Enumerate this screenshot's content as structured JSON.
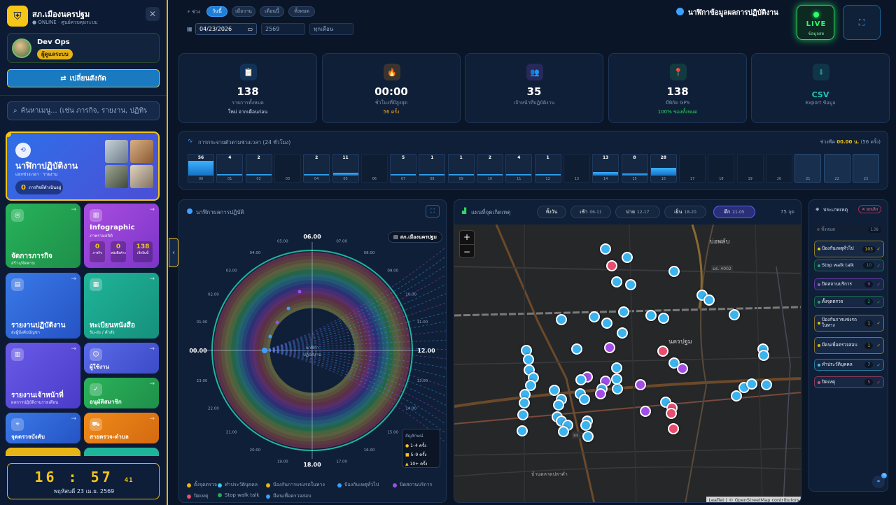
{
  "sidebar": {
    "brand_name": "สภ.เมืองนครปฐม",
    "brand_status": "● ONLINE · ศูนย์ควบคุมระบบ",
    "close": "✕",
    "user_name": "Dev Ops",
    "user_role": "ผู้ดูแลระบบ",
    "switch_label": "เปลี่ยนสังกัด",
    "search_placeholder": "ค้นหาเมนู... (เช่น ภารกิจ, รายงาน, ปฏิทิน)",
    "hero": {
      "title": "นาฬิกาปฏิบัติงาน",
      "subtitle": "แยกช่วงเวลา · รายงาน",
      "count": "0",
      "count_label": "ภารกิจที่ดำเนินอยู่"
    },
    "tiles": [
      {
        "title": "จัดการภารกิจ",
        "sub": "สร้าง/จัดตาม"
      },
      {
        "title": "Infographic",
        "sub": "ภาพรวมสถิติ"
      },
      {
        "title": "รายงานปฏิบัติงาน",
        "sub": "ส่งผู้บังคับบัญชา"
      },
      {
        "title": "ทะเบียนหนังสือ",
        "sub": "รับ-ส่ง / คำสั่ง"
      },
      {
        "title": "รายงานเจ้าหน้าที่",
        "sub": "ผลการปฏิบัติงานรายเดือน"
      },
      {
        "title": "ผู้ใช้งาน",
        "sub": ""
      },
      {
        "title": "อนุมัติสมาชิก",
        "sub": ""
      },
      {
        "title": "จุดตรวจบังคับ",
        "sub": ""
      },
      {
        "title": "สายตรวจ-ตำบล",
        "sub": ""
      }
    ],
    "info_stats": [
      {
        "v": "0",
        "l": "ภารกิจ"
      },
      {
        "v": "0",
        "l": "หนังสือค้าง"
      },
      {
        "v": "138",
        "l": "เช็กอินนี้"
      }
    ],
    "clock_time": "16 : 57",
    "clock_sec": "41",
    "clock_date": "พฤหัสบดี 23 เม.ย. 2569"
  },
  "topbar": {
    "range_label": "⚡ ช่วง",
    "chips": [
      "วันนี้",
      "เมื่อวาน",
      "เดือนนี้",
      "ทั้งหมด"
    ],
    "date_value": "04/23/2026",
    "year": "2569",
    "month": "ทุกเดือน",
    "page_title": "นาฬิกาข้อมูลผลการปฏิบัติงาน",
    "live_label": "LIVE",
    "live_sub": "ข้อมูลสด",
    "fullscreen": "⛶"
  },
  "stats": [
    {
      "value": "138",
      "label": "รายการทั้งหมด",
      "extra": "ใหม่ จากเดือนก่อน",
      "extra_color": "#cfe0f5",
      "icon": "📋",
      "color": "#1e7fd8"
    },
    {
      "value": "00:00",
      "label": "ชั่วโมงที่มีสูงสุด",
      "extra": "56 ครั้ง",
      "extra_color": "#f5a623",
      "icon": "🔥",
      "color": "#e58a13"
    },
    {
      "value": "35",
      "label": "เจ้าหน้าที่ปฏิบัติงาน",
      "extra": "",
      "extra_color": "#cfe0f5",
      "icon": "👥",
      "color": "#8d4fe0"
    },
    {
      "value": "138",
      "label": "มีพิกัด GPS",
      "extra": "100% ของทั้งหมด",
      "extra_color": "#2bd95a",
      "icon": "📍",
      "color": "#23a85a"
    },
    {
      "value": "CSV",
      "label": "Export ข้อมูล",
      "extra": "",
      "extra_color": "#cfe0f5",
      "icon": "⬇",
      "color": "#1a8f8a"
    }
  ],
  "timeline": {
    "title": "การกระจายตัวตามช่วงเวลา (24 ชั่วโมง)",
    "peak_prefix": "ช่วงพีค",
    "peak_value": "00.00 น.",
    "peak_suffix": "(56 ครั้ง)",
    "hours": [
      "00",
      "01",
      "02",
      "03",
      "04",
      "05",
      "06",
      "07",
      "08",
      "09",
      "10",
      "11",
      "12",
      "13",
      "14",
      "15",
      "16",
      "17",
      "18",
      "19",
      "20",
      "21",
      "22",
      "23"
    ],
    "counts": [
      56,
      4,
      2,
      0,
      2,
      11,
      0,
      5,
      1,
      1,
      2,
      4,
      1,
      0,
      13,
      8,
      28,
      0,
      0,
      0,
      0,
      0,
      0,
      0
    ]
  },
  "clock_panel": {
    "title": "นาฬิกาผลการปฏิบัติ",
    "unit_badge": "สภ.เมืองนครปฐม",
    "center_label": "นาฬิกา\nปฏิบัติงาน",
    "hour_labels": [
      "00.00",
      "01.00",
      "02.00",
      "03.00",
      "04.00",
      "05.00",
      "06.00",
      "07.00",
      "08.00",
      "09.00",
      "10.00",
      "11.00",
      "12.00",
      "13.00",
      "14.00",
      "15.00",
      "16.00",
      "17.00",
      "18.00",
      "19.00",
      "20.00",
      "21.00",
      "22.00",
      "23.00"
    ],
    "size_legend_title": "สัญลักษณ์",
    "size_legend": [
      "1–4 ครั้ง",
      "5–9 ครั้ง",
      "10+ ครั้ง"
    ],
    "legend": [
      {
        "label": "ตั้งจุดตรวจ",
        "color": "#e8b516"
      },
      {
        "label": "ทำประวัติบุคคล",
        "color": "#3bc7ef"
      },
      {
        "label": "ป้องกันการแข่งรถในทาง",
        "color": "#e8b516"
      },
      {
        "label": "ป้องกันเหตุทั่วไป",
        "color": "#3aa0ff"
      },
      {
        "label": "ปิดสถานบริการ",
        "color": "#a24de8"
      },
      {
        "label": "ปิดเหตุ",
        "color": "#e84d6e"
      },
      {
        "label": "Stop walk talk",
        "color": "#23a85a"
      },
      {
        "label": "มีคนเพื่อตรวจสอบ",
        "color": "#3aa0ff"
      }
    ]
  },
  "map_panel": {
    "title": "แผนที่จุดเกิดเหตุ",
    "filters": [
      {
        "label": "ทั้งวัน",
        "range": ""
      },
      {
        "label": "เช้า",
        "range": "06-11"
      },
      {
        "label": "บ่าย",
        "range": "12-17"
      },
      {
        "label": "เย็น",
        "range": "18-20"
      },
      {
        "label": "ดึก",
        "range": "21-05"
      }
    ],
    "count": "75 จุด",
    "place_labels": [
      "บ่อพลับ",
      "นครปฐม",
      "บ้านตลาดปลาคำ",
      "มธ. 4002",
      "มธ. 1021"
    ],
    "attribution": "Leaflet | © OpenStreetMap contributors",
    "zoom_in": "+",
    "zoom_out": "−"
  },
  "type_panel": {
    "title": "ประเภทเหตุ",
    "clear": "✕ ยกเลิก",
    "all_label": "ทั้งหมด",
    "all_count": "138",
    "items": [
      {
        "label": "ป้องกันเหตุทั่วไป",
        "count": "103",
        "color": "#f5c518"
      },
      {
        "label": "Stop walk talk",
        "count": "10",
        "color": "#23a85a"
      },
      {
        "label": "ปิดสถานบริการ",
        "count": "9",
        "color": "#a24de8"
      },
      {
        "label": "ตั้งจุดตรวจ",
        "count": "2",
        "color": "#23a85a"
      },
      {
        "label": "ป้องกันการแข่งรถในทาง",
        "count": "1",
        "color": "#e8b516"
      },
      {
        "label": "มีคนเพื่อตรวจสอบ",
        "count": "1",
        "color": "#e8b516"
      },
      {
        "label": "ทำประวัติบุคคล",
        "count": "7",
        "color": "#3bc7ef"
      },
      {
        "label": "ปิดเหตุ",
        "count": "5",
        "color": "#e84d6e"
      }
    ],
    "check": "✓"
  }
}
